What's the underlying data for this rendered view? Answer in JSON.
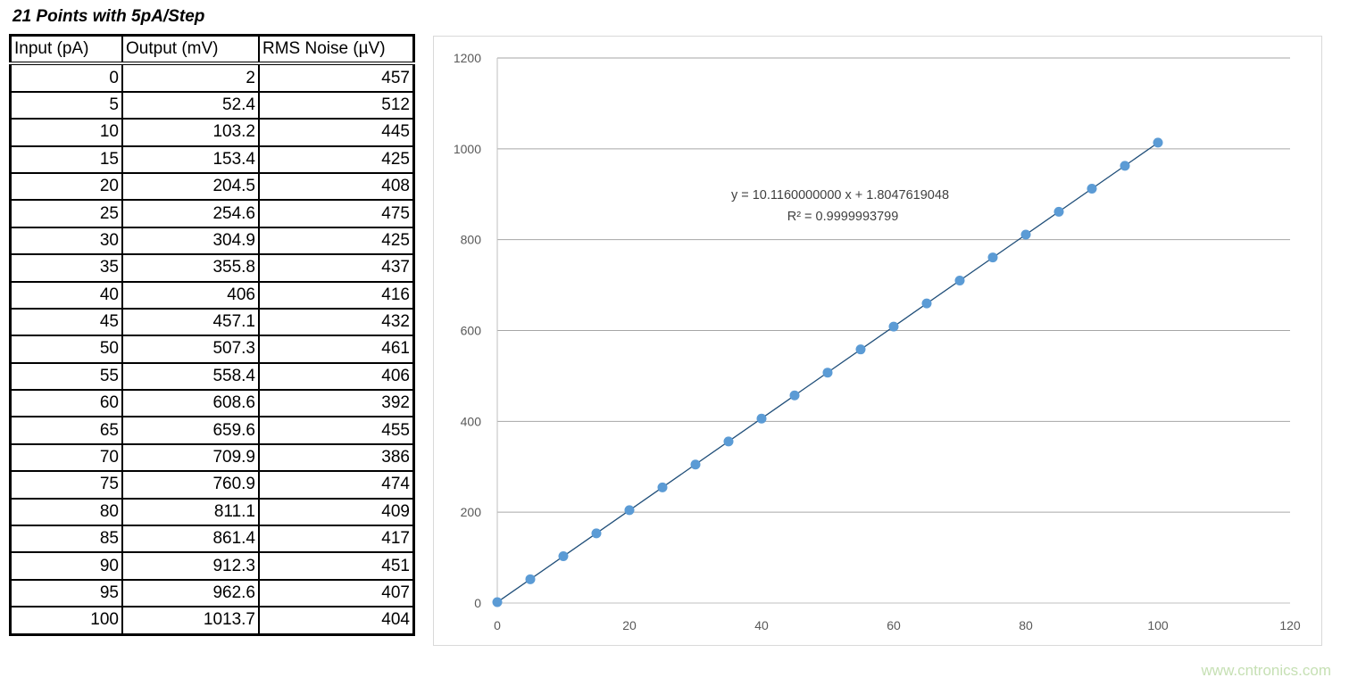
{
  "title": "21 Points with 5pA/Step",
  "table": {
    "headers": [
      "Input (pA)",
      "Output (mV)",
      "RMS Noise (µV)"
    ],
    "rows": [
      [
        "0",
        "2",
        "457"
      ],
      [
        "5",
        "52.4",
        "512"
      ],
      [
        "10",
        "103.2",
        "445"
      ],
      [
        "15",
        "153.4",
        "425"
      ],
      [
        "20",
        "204.5",
        "408"
      ],
      [
        "25",
        "254.6",
        "475"
      ],
      [
        "30",
        "304.9",
        "425"
      ],
      [
        "35",
        "355.8",
        "437"
      ],
      [
        "40",
        "406",
        "416"
      ],
      [
        "45",
        "457.1",
        "432"
      ],
      [
        "50",
        "507.3",
        "461"
      ],
      [
        "55",
        "558.4",
        "406"
      ],
      [
        "60",
        "608.6",
        "392"
      ],
      [
        "65",
        "659.6",
        "455"
      ],
      [
        "70",
        "709.9",
        "386"
      ],
      [
        "75",
        "760.9",
        "474"
      ],
      [
        "80",
        "811.1",
        "409"
      ],
      [
        "85",
        "861.4",
        "417"
      ],
      [
        "90",
        "912.3",
        "451"
      ],
      [
        "95",
        "962.6",
        "407"
      ],
      [
        "100",
        "1013.7",
        "404"
      ]
    ]
  },
  "chart_data": {
    "type": "scatter",
    "x": [
      0,
      5,
      10,
      15,
      20,
      25,
      30,
      35,
      40,
      45,
      50,
      55,
      60,
      65,
      70,
      75,
      80,
      85,
      90,
      95,
      100
    ],
    "y": [
      2,
      52.4,
      103.2,
      153.4,
      204.5,
      254.6,
      304.9,
      355.8,
      406,
      457.1,
      507.3,
      558.4,
      608.6,
      659.6,
      709.9,
      760.9,
      811.1,
      861.4,
      912.3,
      962.6,
      1013.7
    ],
    "xlim": [
      0,
      120
    ],
    "ylim": [
      0,
      1200
    ],
    "xticks": [
      0,
      20,
      40,
      60,
      80,
      100,
      120
    ],
    "yticks": [
      0,
      200,
      400,
      600,
      800,
      1000,
      1200
    ],
    "grid": "horizontal",
    "trendline": {
      "slope": 10.116,
      "intercept": 1.8047619048,
      "equation": "y = 10.1160000000 x + 1.8047619048",
      "r2": "R² = 0.9999993799"
    },
    "colors": {
      "marker": "#5b9bd5",
      "trendline": "#1f4e79",
      "grid": "#a6a6a6"
    }
  },
  "watermark": "www.cntronics.com"
}
